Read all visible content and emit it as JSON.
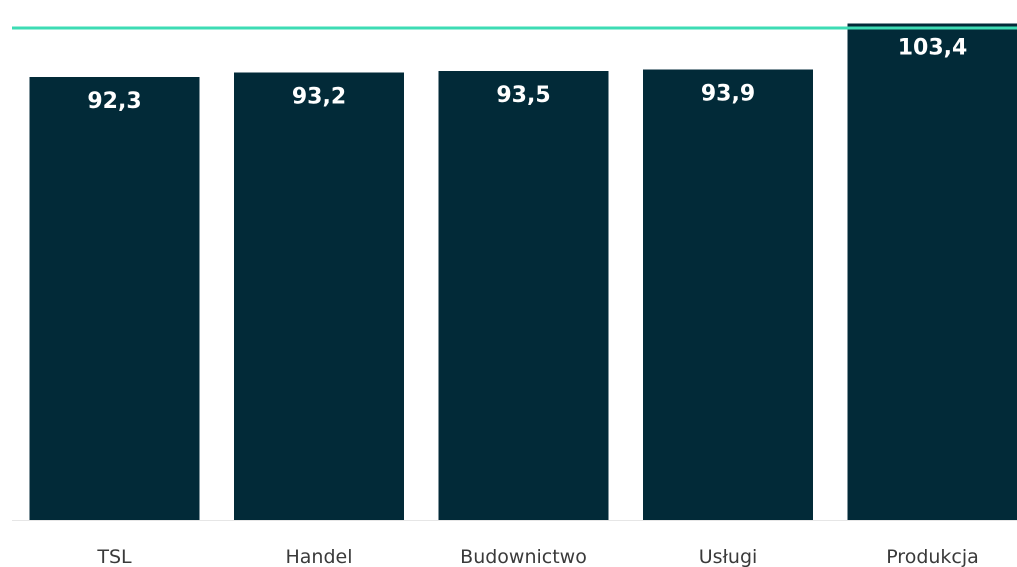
{
  "chart_data": {
    "type": "bar",
    "categories": [
      "TSL",
      "Handel",
      "Budownictwo",
      "Usługi",
      "Produkcja"
    ],
    "values": [
      92.3,
      93.2,
      93.5,
      93.9,
      103.4
    ],
    "value_labels": [
      "92,3",
      "93,2",
      "93,5",
      "93,9",
      "103,4"
    ],
    "reference_line": 102.5,
    "ylim": [
      0,
      104
    ],
    "grid": false,
    "legend": "none",
    "colors": {
      "bar": "#022a38",
      "reference_line": "#3ddcb4",
      "baseline": "#e6e6e6",
      "value_label": "#ffffff",
      "tick_label": "#3a3a3a"
    }
  }
}
